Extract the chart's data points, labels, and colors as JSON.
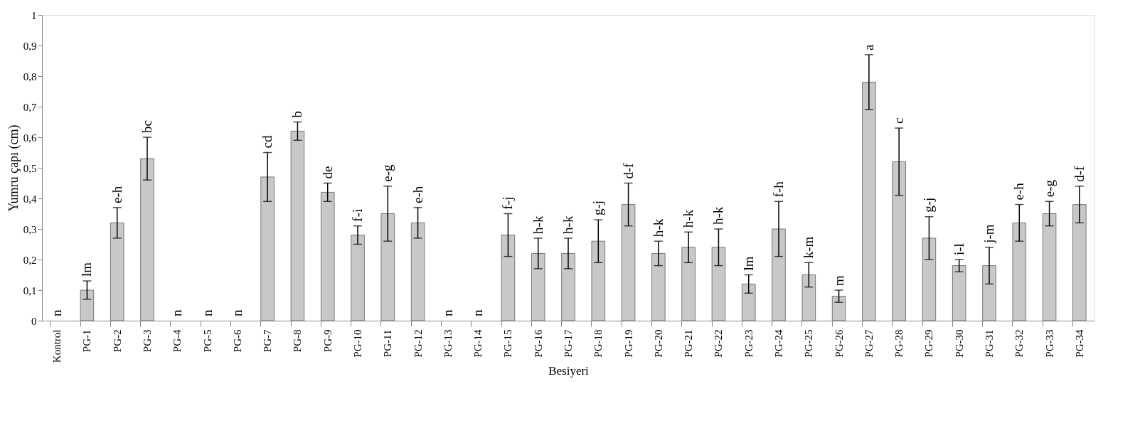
{
  "chart_data": {
    "type": "bar",
    "xlabel": "Besiyeri",
    "ylabel": "Yumru çapı (cm)",
    "categories": [
      "Kontrol",
      "PG-1",
      "PG-2",
      "PG-3",
      "PG-4",
      "PG-5",
      "PG-6",
      "PG-7",
      "PG-8",
      "PG-9",
      "PG-10",
      "PG-11",
      "PG-12",
      "PG-13",
      "PG-14",
      "PG-15",
      "PG-16",
      "PG-17",
      "PG-18",
      "PG-19",
      "PG-20",
      "PG-21",
      "PG-22",
      "PG-23",
      "PG-24",
      "PG-25",
      "PG-26",
      "PG-27",
      "PG-28",
      "PG-29",
      "PG-30",
      "PG-31",
      "PG-32",
      "PG-33",
      "PG-34"
    ],
    "values": [
      0,
      0.1,
      0.32,
      0.53,
      0,
      0,
      0,
      0.47,
      0.62,
      0.42,
      0.28,
      0.35,
      0.32,
      0,
      0,
      0.28,
      0.22,
      0.22,
      0.26,
      0.38,
      0.22,
      0.24,
      0.24,
      0.12,
      0.3,
      0.15,
      0.08,
      0.78,
      0.52,
      0.27,
      0.18,
      0.18,
      0.32,
      0.35,
      0.38
    ],
    "errors": [
      null,
      0.03,
      0.05,
      0.07,
      null,
      null,
      null,
      0.08,
      0.03,
      0.03,
      0.03,
      0.09,
      0.05,
      null,
      null,
      0.07,
      0.05,
      0.05,
      0.07,
      0.07,
      0.04,
      0.05,
      0.06,
      0.03,
      0.09,
      0.04,
      0.02,
      0.09,
      0.11,
      0.07,
      0.02,
      0.06,
      0.06,
      0.04,
      0.06
    ],
    "value_labels": [
      "n",
      "lm",
      "e-h",
      "bc",
      "n",
      "n",
      "n",
      "cd",
      "b",
      "de",
      "f-i",
      "e-g",
      "e-h",
      "n",
      "n",
      "f-j",
      "h-k",
      "h-k",
      "g-j",
      "d-f",
      "h-k",
      "h-k",
      "h-k",
      "lm",
      "f-h",
      "k-m",
      "m",
      "a",
      "c",
      "g-j",
      "i-l",
      "j-m",
      "e-h",
      "e-g",
      "d-f"
    ],
    "color": "#c8c8c8",
    "ylim": [
      0,
      1
    ],
    "yticks": [
      0,
      {
        "value": 0.1,
        "label": "0,1"
      },
      {
        "value": 0.2,
        "label": "0,2"
      },
      {
        "value": 0.3,
        "label": "0,3"
      },
      {
        "value": 0.4,
        "label": "0,4"
      },
      {
        "value": 0.5,
        "label": "0,5"
      },
      {
        "value": 0.6,
        "label": "0,6"
      },
      {
        "value": 0.7,
        "label": "0,7"
      },
      {
        "value": 0.8,
        "label": "0,8"
      },
      {
        "value": 0.9,
        "label": "0,9"
      },
      1
    ],
    "grid": false
  }
}
